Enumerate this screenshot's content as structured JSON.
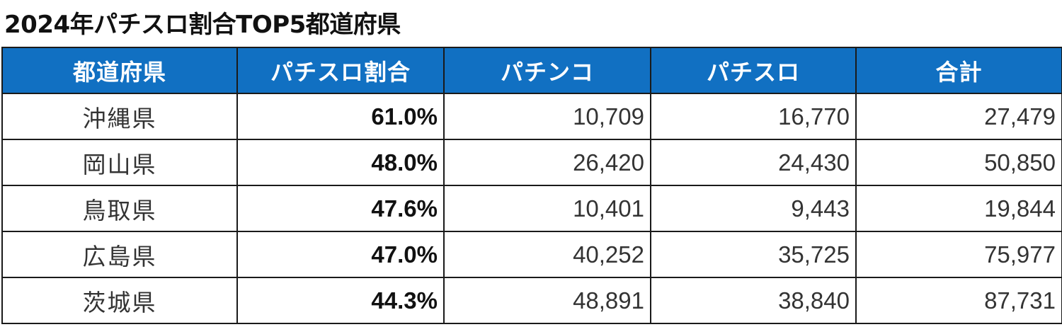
{
  "title": "2024年パチスロ割合TOP5都道府県",
  "table": {
    "headers": [
      "都道府県",
      "パチスロ割合",
      "パチンコ",
      "パチスロ",
      "合計"
    ],
    "rows": [
      {
        "prefecture": "沖縄県",
        "ratio": "61.0%",
        "pachinko": "10,709",
        "pachislot": "16,770",
        "total": "27,479"
      },
      {
        "prefecture": "岡山県",
        "ratio": "48.0%",
        "pachinko": "26,420",
        "pachislot": "24,430",
        "total": "50,850"
      },
      {
        "prefecture": "鳥取県",
        "ratio": "47.6%",
        "pachinko": "10,401",
        "pachislot": "9,443",
        "total": "19,844"
      },
      {
        "prefecture": "広島県",
        "ratio": "47.0%",
        "pachinko": "40,252",
        "pachislot": "35,725",
        "total": "75,977"
      },
      {
        "prefecture": "茨城県",
        "ratio": "44.3%",
        "pachinko": "48,891",
        "pachislot": "38,840",
        "total": "87,731"
      }
    ]
  },
  "colors": {
    "header_bg": "#1170c2",
    "header_text": "#ffffff"
  }
}
